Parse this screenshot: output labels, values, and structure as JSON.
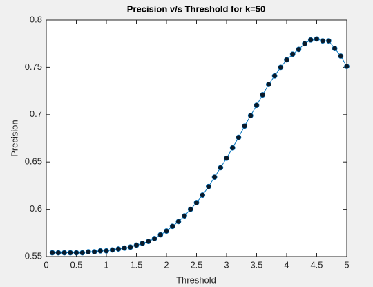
{
  "chart_data": {
    "type": "line",
    "title": "Precision v/s Threshold for k=50",
    "xlabel": "Threshold",
    "ylabel": "Precision",
    "x": [
      0.1,
      0.2,
      0.3,
      0.4,
      0.5,
      0.6,
      0.7,
      0.8,
      0.9,
      1.0,
      1.1,
      1.2,
      1.3,
      1.4,
      1.5,
      1.6,
      1.7,
      1.8,
      1.9,
      2.0,
      2.1,
      2.2,
      2.3,
      2.4,
      2.5,
      2.6,
      2.7,
      2.8,
      2.9,
      3.0,
      3.1,
      3.2,
      3.3,
      3.4,
      3.5,
      3.6,
      3.7,
      3.8,
      3.9,
      4.0,
      4.1,
      4.2,
      4.3,
      4.4,
      4.5,
      4.6,
      4.7,
      4.8,
      4.9,
      5.0
    ],
    "series": [
      {
        "name": "Precision",
        "color": "#0072bd",
        "marker_color": "#0a1a2a",
        "values": [
          0.554,
          0.554,
          0.554,
          0.554,
          0.554,
          0.554,
          0.555,
          0.555,
          0.556,
          0.556,
          0.557,
          0.558,
          0.559,
          0.56,
          0.562,
          0.564,
          0.566,
          0.569,
          0.573,
          0.577,
          0.582,
          0.587,
          0.593,
          0.6,
          0.607,
          0.615,
          0.624,
          0.634,
          0.644,
          0.654,
          0.665,
          0.676,
          0.688,
          0.699,
          0.71,
          0.721,
          0.732,
          0.741,
          0.75,
          0.758,
          0.764,
          0.769,
          0.775,
          0.779,
          0.78,
          0.778,
          0.778,
          0.77,
          0.762,
          0.751
        ]
      }
    ],
    "xlim": [
      0,
      5
    ],
    "xticks": [
      0,
      0.5,
      1,
      1.5,
      2,
      2.5,
      3,
      3.5,
      4,
      4.5,
      5
    ],
    "ylim": [
      0.55,
      0.8
    ],
    "yticks": [
      0.55,
      0.6,
      0.65,
      0.7,
      0.75,
      0.8
    ],
    "grid": false
  }
}
